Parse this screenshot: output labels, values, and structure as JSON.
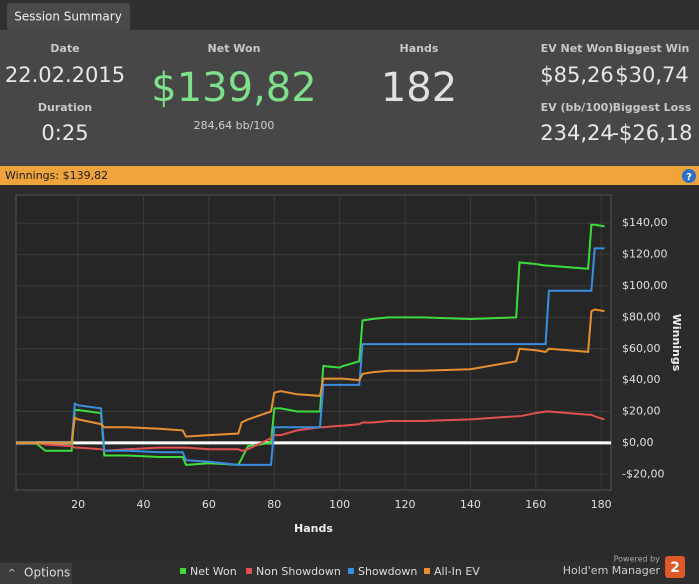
{
  "tab": "Session Summary",
  "stats": {
    "date": {
      "label": "Date",
      "value": "22.02.2015"
    },
    "duration": {
      "label": "Duration",
      "value": "0:25"
    },
    "net_won": {
      "label": "Net Won",
      "value": "$139,82",
      "sub": "284,64 bb/100"
    },
    "hands": {
      "label": "Hands",
      "value": "182"
    },
    "ev_net_won": {
      "label": "EV Net Won",
      "value": "$85,26"
    },
    "biggest_win": {
      "label": "Biggest Win",
      "value": "$30,74"
    },
    "ev_bb": {
      "label": "EV (bb/100)",
      "value": "234,24"
    },
    "biggest_loss": {
      "label": "Biggest Loss",
      "value": "-$26,18"
    }
  },
  "winnings_bar": "Winnings: $139,82",
  "help": "?",
  "chart_data": {
    "type": "line",
    "xlabel": "Hands",
    "ylabel": "Winnings",
    "x": [
      1,
      7,
      10,
      18,
      19,
      20,
      27,
      28,
      35,
      45,
      52,
      53,
      60,
      69,
      70,
      72,
      79,
      80,
      82,
      87,
      94,
      95,
      100,
      101,
      106,
      107,
      110,
      115,
      125,
      140,
      154,
      155,
      160,
      163,
      164,
      170,
      176,
      177,
      178,
      181
    ],
    "series": [
      {
        "name": "Net Won",
        "color": "#3ddc3d",
        "values": [
          0,
          0,
          -5,
          -5,
          21,
          21,
          19,
          -8,
          -8,
          -9,
          -9,
          -14,
          -13,
          -14,
          -10,
          -2,
          0,
          22,
          22,
          20,
          20,
          49,
          48,
          49,
          52,
          78,
          79,
          80,
          80,
          79,
          80,
          115,
          114,
          113,
          113,
          112,
          111,
          139,
          139,
          138
        ]
      },
      {
        "name": "Non Showdown",
        "color": "#e05050",
        "values": [
          0,
          0,
          -1,
          -2,
          -3,
          -3,
          -4,
          -5,
          -4,
          -3,
          -3,
          -3,
          -4,
          -4,
          -5,
          -4,
          3,
          5,
          5,
          8,
          10,
          10,
          11,
          11,
          12,
          13,
          13,
          14,
          14,
          15,
          17,
          17,
          19,
          20,
          20,
          19,
          18,
          18,
          17,
          15
        ]
      },
      {
        "name": "Showdown",
        "color": "#3a8ee0",
        "values": [
          0,
          0,
          0,
          0,
          25,
          24,
          22,
          -5,
          -5,
          -6,
          -6,
          -11,
          -12,
          -14,
          -14,
          -14,
          -14,
          10,
          10,
          10,
          10,
          37,
          37,
          37,
          37,
          63,
          63,
          63,
          63,
          63,
          63,
          63,
          63,
          63,
          97,
          97,
          97,
          97,
          124,
          124
        ]
      },
      {
        "name": "All-In EV",
        "color": "#e89030",
        "values": [
          0,
          0,
          0,
          0,
          16,
          15,
          12,
          10,
          10,
          9,
          8,
          4,
          5,
          6,
          13,
          15,
          20,
          32,
          33,
          31,
          30,
          41,
          41,
          41,
          40,
          44,
          45,
          46,
          46,
          47,
          52,
          60,
          59,
          58,
          60,
          59,
          58,
          84,
          85,
          84
        ]
      }
    ],
    "xlim": [
      1,
      183
    ],
    "xticks": [
      20,
      40,
      60,
      80,
      100,
      120,
      140,
      160,
      180
    ],
    "ylim": [
      -30,
      158
    ],
    "yticks": [
      {
        "value": -20,
        "label": "-$20,00"
      },
      {
        "value": 0,
        "label": "$0,00"
      },
      {
        "value": 20,
        "label": "$20,00"
      },
      {
        "value": 40,
        "label": "$40,00"
      },
      {
        "value": 60,
        "label": "$60,00"
      },
      {
        "value": 80,
        "label": "$80,00"
      },
      {
        "value": 100,
        "label": "$100,00"
      },
      {
        "value": 120,
        "label": "$120,00"
      },
      {
        "value": 140,
        "label": "$140,00"
      }
    ],
    "grid": true
  },
  "footer": {
    "options": "Options",
    "powered": "Powered by",
    "brand": "Hold'em Manager",
    "version": "2"
  }
}
